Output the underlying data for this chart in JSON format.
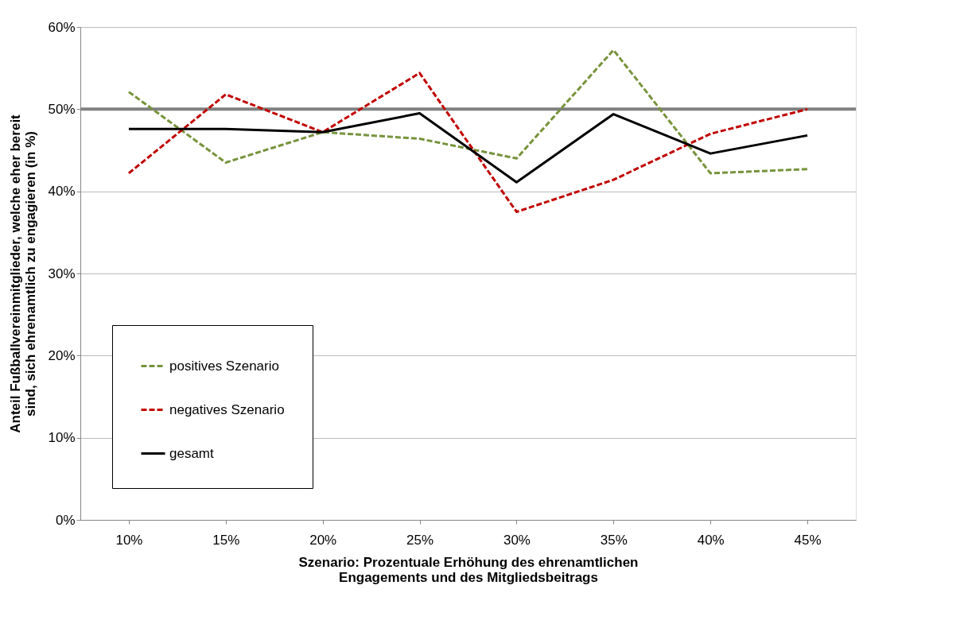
{
  "chart_data": {
    "type": "line",
    "xlabel": "Szenario: Prozentuale Erhöhung des ehrenamtlichen Engagements und des Mitgliedsbeitrags",
    "ylabel": "Anteil Fußballvereinmitglieder, welche eher bereit sind, sich ehrenamtlich zu engagieren (in %)",
    "categories": [
      "10%",
      "15%",
      "20%",
      "25%",
      "30%",
      "35%",
      "40%",
      "45%"
    ],
    "series": [
      {
        "name": "positives Szenario",
        "color": "#77933c",
        "line_style": "dashed",
        "values": [
          52.1,
          43.5,
          47.2,
          46.4,
          44.0,
          57.2,
          42.2,
          42.7
        ]
      },
      {
        "name": "negatives Szenario",
        "color": "#c00000",
        "line_style": "dashed",
        "values": [
          42.2,
          51.8,
          47.2,
          54.4,
          37.5,
          41.4,
          47.0,
          50.0
        ]
      },
      {
        "name": "gesamt",
        "color": "#000000",
        "line_style": "solid",
        "values": [
          47.6,
          47.6,
          47.2,
          49.5,
          41.1,
          49.4,
          44.6,
          46.8
        ]
      }
    ],
    "ylim": [
      0,
      60
    ],
    "yticks": [
      {
        "value": 0,
        "label": "0%"
      },
      {
        "value": 10,
        "label": "10%"
      },
      {
        "value": 20,
        "label": "20%"
      },
      {
        "value": 30,
        "label": "30%"
      },
      {
        "value": 40,
        "label": "40%"
      },
      {
        "value": 50,
        "label": "50%"
      },
      {
        "value": 60,
        "label": "60%"
      }
    ],
    "ref_lines": [
      {
        "axis": "y",
        "value": 50,
        "color": "#808080"
      }
    ],
    "grid": "y",
    "legend": "bottom left",
    "marker": "none"
  }
}
